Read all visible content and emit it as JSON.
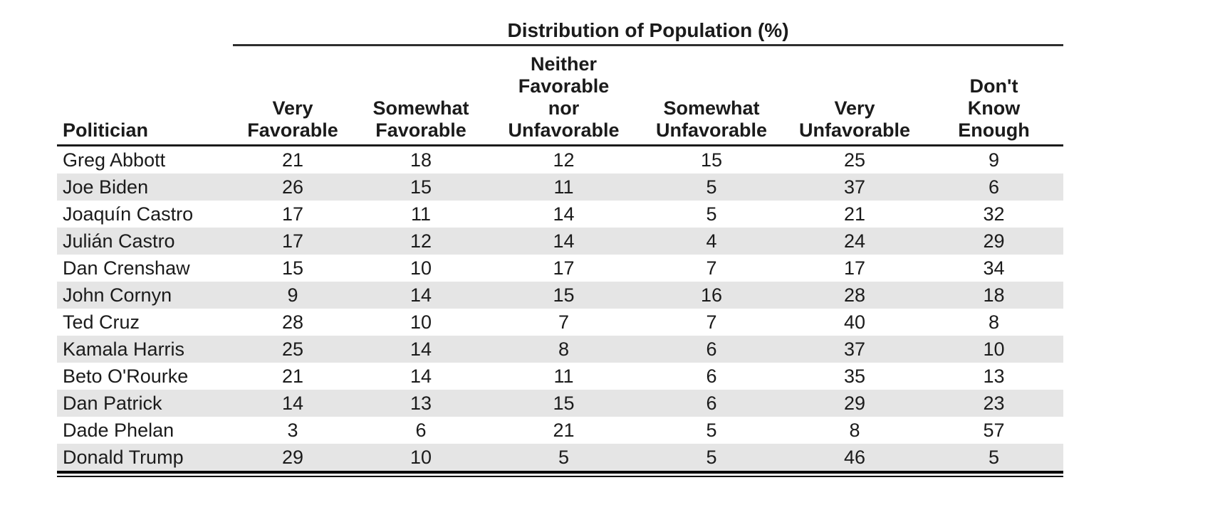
{
  "chart_data": {
    "type": "table",
    "title": "Distribution of Population (%)",
    "columns": [
      "Politician",
      "Very\nFavorable",
      "Somewhat\nFavorable",
      "Neither\nFavorable\nnor\nUnfavorable",
      "Somewhat\nUnfavorable",
      "Very\nUnfavorable",
      "Don't\nKnow\nEnough"
    ],
    "rows": [
      {
        "politician": "Greg Abbott",
        "values": [
          21,
          18,
          12,
          15,
          25,
          9
        ]
      },
      {
        "politician": "Joe Biden",
        "values": [
          26,
          15,
          11,
          5,
          37,
          6
        ]
      },
      {
        "politician": "Joaquín Castro",
        "values": [
          17,
          11,
          14,
          5,
          21,
          32
        ]
      },
      {
        "politician": "Julián Castro",
        "values": [
          17,
          12,
          14,
          4,
          24,
          29
        ]
      },
      {
        "politician": "Dan Crenshaw",
        "values": [
          15,
          10,
          17,
          7,
          17,
          34
        ]
      },
      {
        "politician": "John Cornyn",
        "values": [
          9,
          14,
          15,
          16,
          28,
          18
        ]
      },
      {
        "politician": "Ted Cruz",
        "values": [
          28,
          10,
          7,
          7,
          40,
          8
        ]
      },
      {
        "politician": "Kamala Harris",
        "values": [
          25,
          14,
          8,
          6,
          37,
          10
        ]
      },
      {
        "politician": "Beto O'Rourke",
        "values": [
          21,
          14,
          11,
          6,
          35,
          13
        ]
      },
      {
        "politician": "Dan Patrick",
        "values": [
          14,
          13,
          15,
          6,
          29,
          23
        ]
      },
      {
        "politician": "Dade Phelan",
        "values": [
          3,
          6,
          21,
          5,
          8,
          57
        ]
      },
      {
        "politician": "Donald Trump",
        "values": [
          29,
          10,
          5,
          5,
          46,
          5
        ]
      }
    ],
    "layout": {
      "striped": true,
      "stripe_color": "#e5e5e5",
      "text_color": "#1b1b1b",
      "rule_color": "#1a1a1a",
      "bottom_rule": "double"
    }
  }
}
